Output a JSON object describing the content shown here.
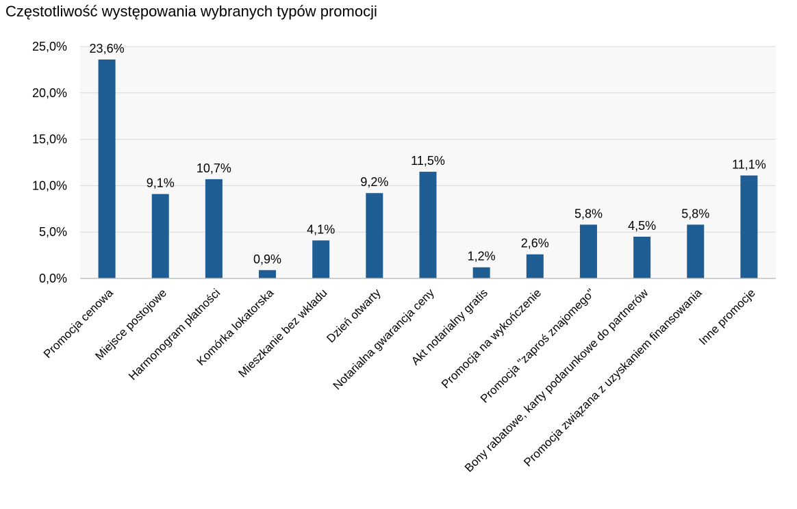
{
  "chart_data": {
    "type": "bar",
    "title": "Częstotliwość występowania wybranych typów promocji",
    "xlabel": "",
    "ylabel": "",
    "categories": [
      "Promocja cenowa",
      "Miejsce postojowe",
      "Harmonogram płatności",
      "Komórka lokatorska",
      "Mieszkanie bez wkładu",
      "Dzień otwarty",
      "Notarialna gwarancja ceny",
      "Akt notarialny gratis",
      "Promocja na wykończenie",
      "Promocja \"zaproś znajomego\"",
      "Bony rabatowe, karty podarunkowe do partnerów",
      "Promocja związana z uzyskaniem finansowania",
      "Inne promocje"
    ],
    "values": [
      23.6,
      9.1,
      10.7,
      0.9,
      4.1,
      9.2,
      11.5,
      1.2,
      2.6,
      5.8,
      4.5,
      5.8,
      11.1
    ],
    "value_labels": [
      "23,6%",
      "9,1%",
      "10,7%",
      "0,9%",
      "4,1%",
      "9,2%",
      "11,5%",
      "1,2%",
      "2,6%",
      "5,8%",
      "4,5%",
      "5,8%",
      "11,1%"
    ],
    "yticks": [
      0,
      5,
      10,
      15,
      20,
      25
    ],
    "ytick_labels": [
      "0,0%",
      "5,0%",
      "10,0%",
      "15,0%",
      "20,0%",
      "25,0%"
    ],
    "ylim": [
      0,
      25
    ],
    "grid": true,
    "legend": "none",
    "colors": {
      "bar": "#1f5e94",
      "grid": "#d9d9d9",
      "plot_bg": "#f8f8f8",
      "axis": "#bfbfbf"
    }
  }
}
